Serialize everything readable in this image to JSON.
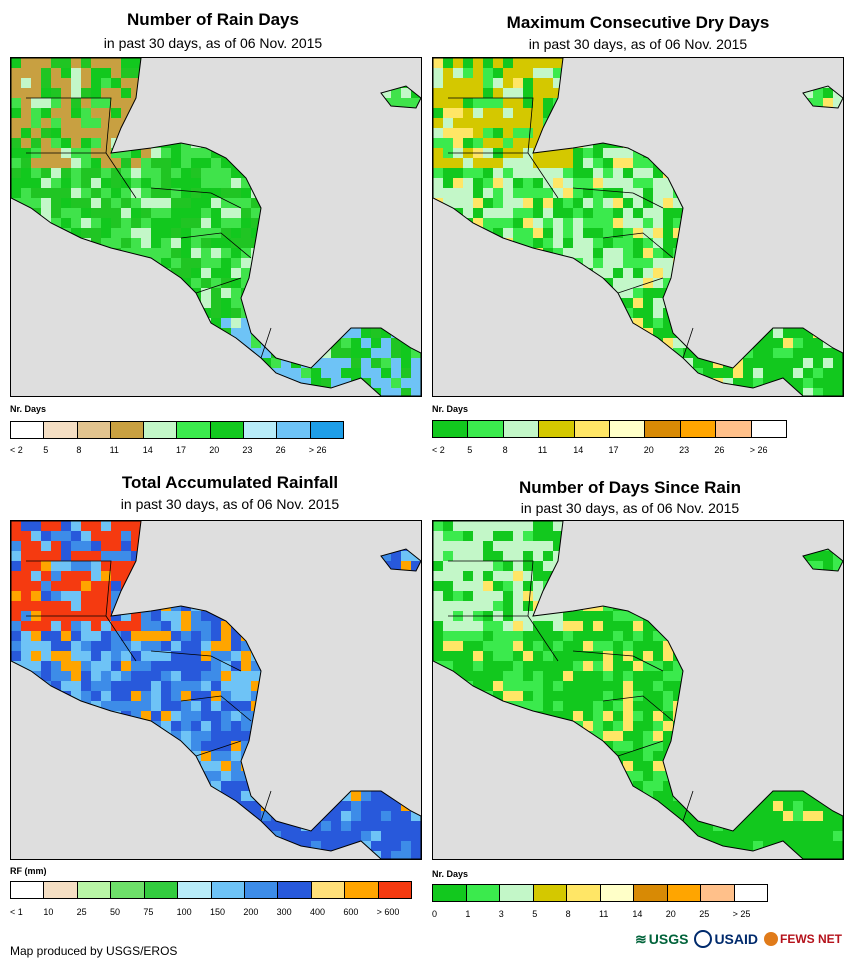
{
  "panels": [
    {
      "title": "Number of Rain Days",
      "subtitle": "in past 30 days, as of 06 Nov. 2015",
      "legend_title": "Nr. Days",
      "legend_labels": [
        "< 2",
        "5",
        "8",
        "11",
        "14",
        "17",
        "20",
        "23",
        "26",
        "> 26"
      ],
      "legend_colors": [
        "#ffffff",
        "#f5dfc4",
        "#e2c48f",
        "#c8a041",
        "#c3f7c8",
        "#3bea4d",
        "#12c81e",
        "#b8ecf9",
        "#6ec3f6",
        "#1e9ee8"
      ],
      "map_palette": [
        "#20c523",
        "#40e34b",
        "#12c81e",
        "#c3f7c8",
        "#c8a041",
        "#6ec3f6"
      ],
      "map_cluster": {
        "north": 4,
        "coast": 3,
        "south": 5
      }
    },
    {
      "title": "Maximum Consecutive Dry Days",
      "subtitle": "in past 30 days, as of 06 Nov. 2015",
      "legend_title": "Nr. Days",
      "legend_labels": [
        "< 2",
        "5",
        "8",
        "11",
        "14",
        "17",
        "20",
        "23",
        "26",
        "> 26"
      ],
      "legend_colors": [
        "#12c81e",
        "#3bea4d",
        "#c3f7c8",
        "#d4c800",
        "#ffe666",
        "#ffffc8",
        "#d88a05",
        "#ffa500",
        "#ffc08a",
        "#ffffff"
      ],
      "map_palette": [
        "#12c81e",
        "#3bea4d",
        "#c3f7c8",
        "#d4c800",
        "#ffe666",
        "#ffffc8"
      ],
      "map_cluster": {
        "north": 3,
        "coast": 4,
        "south": 0
      }
    },
    {
      "title": "Total Accumulated Rainfall",
      "subtitle": "in past 30 days, as of 06 Nov. 2015",
      "legend_title": "RF (mm)",
      "legend_labels": [
        "< 1",
        "10",
        "25",
        "50",
        "75",
        "100",
        "150",
        "200",
        "300",
        "400",
        "600",
        "> 600"
      ],
      "legend_colors": [
        "#ffffff",
        "#f5dfc4",
        "#b9f5a6",
        "#6ee06a",
        "#33cc3f",
        "#b8ecf9",
        "#6ec3f6",
        "#3d8ce8",
        "#2859db",
        "#ffe07a",
        "#ffa500",
        "#f53a10"
      ],
      "map_palette": [
        "#3d8ce8",
        "#2859db",
        "#6ec3f6",
        "#ffe07a",
        "#ffa500",
        "#f53a10"
      ],
      "map_cluster": {
        "north": 5,
        "coast": 4,
        "south": 1
      }
    },
    {
      "title": "Number of Days Since Rain",
      "subtitle": "in past 30 days, as of 06 Nov. 2015",
      "legend_title": "Nr. Days",
      "legend_labels": [
        "0",
        "1",
        "3",
        "5",
        "8",
        "11",
        "14",
        "20",
        "25",
        "> 25"
      ],
      "legend_colors": [
        "#12c81e",
        "#3bea4d",
        "#c3f7c8",
        "#d4c800",
        "#ffe666",
        "#ffffc8",
        "#d88a05",
        "#ffa500",
        "#ffc08a",
        "#ffffff"
      ],
      "map_palette": [
        "#12c81e",
        "#12c81e",
        "#3bea4d",
        "#c3f7c8",
        "#ffe666",
        "#d4c800"
      ],
      "map_cluster": {
        "north": 3,
        "coast": 4,
        "south": 0
      }
    }
  ],
  "credit": "Map produced by USGS/EROS",
  "logos": [
    "USGS",
    "USAID",
    "FEWS NET"
  ]
}
